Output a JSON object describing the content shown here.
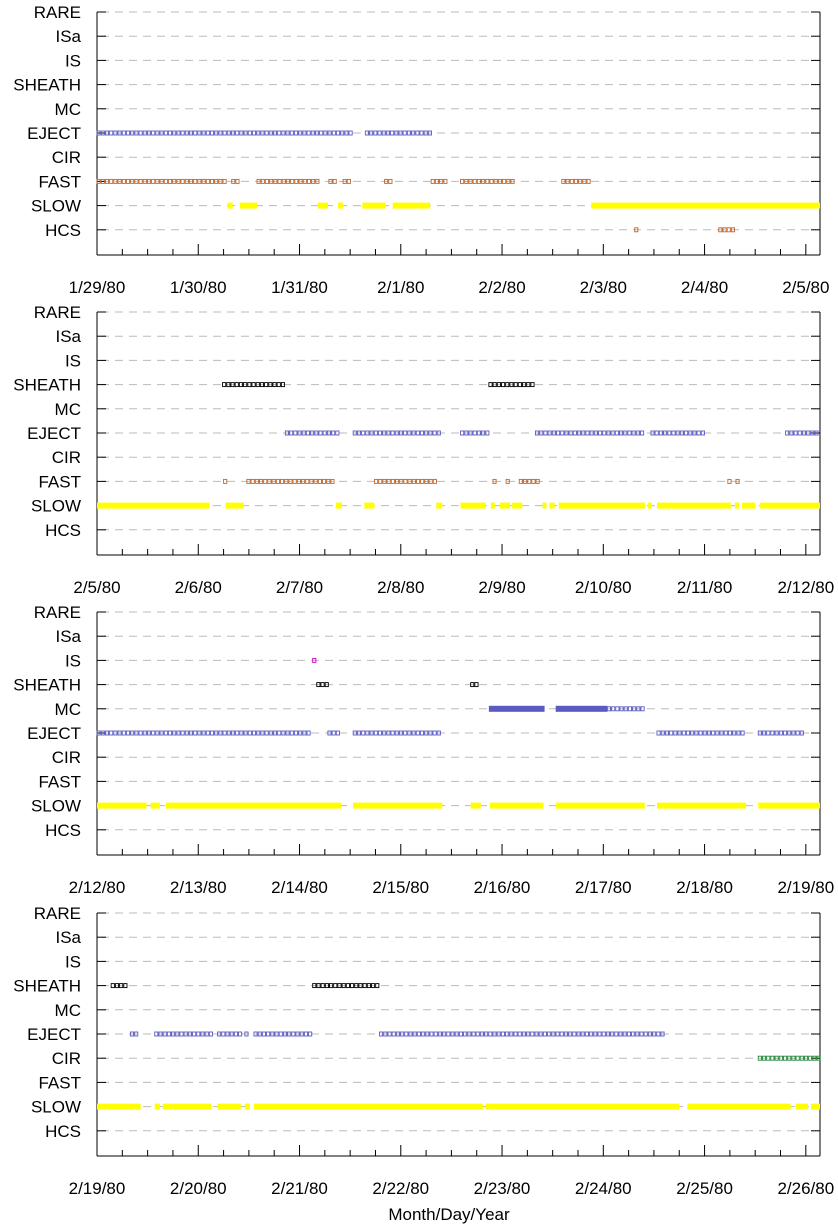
{
  "chart_data": {
    "type": "scatter",
    "title": "",
    "xlabel": "Month/Day/Year",
    "categories": [
      "RARE",
      "ISa",
      "IS",
      "SHEATH",
      "MC",
      "EJECT",
      "CIR",
      "FAST",
      "SLOW",
      "HCS"
    ],
    "colors": {
      "SLOW": "#ffff00",
      "FAST": "#c0652a",
      "EJECT": "#5a5ac0",
      "MC": "#5a5ac0",
      "SHEATH": "#000000",
      "IS": "#cc00cc",
      "CIR": "#22893a",
      "HCS": "#c0652a",
      "grid": "#bbbbbb"
    },
    "panels": [
      {
        "xstart": "1/29/80",
        "xticks": [
          "1/29/80",
          "1/30/80",
          "1/31/80",
          "2/1/80",
          "2/2/80",
          "2/3/80",
          "2/4/80",
          "2/5/80"
        ],
        "series": [
          {
            "name": "EJECT",
            "style": "sparse",
            "intervals": [
              [
                0.0,
                2.53
              ],
              [
                2.65,
                3.3
              ]
            ]
          },
          {
            "name": "FAST",
            "style": "sparse",
            "intervals": [
              [
                0.0,
                1.27
              ],
              [
                1.33,
                1.41
              ],
              [
                1.58,
                2.2
              ],
              [
                2.29,
                2.38
              ],
              [
                2.43,
                2.53
              ],
              [
                2.84,
                2.92
              ],
              [
                3.3,
                3.47
              ],
              [
                3.59,
                4.13
              ],
              [
                4.59,
                4.9
              ]
            ]
          },
          {
            "name": "SLOW",
            "style": "dense",
            "intervals": [
              [
                1.29,
                1.34
              ],
              [
                1.41,
                1.58
              ],
              [
                2.18,
                2.28
              ],
              [
                2.38,
                2.43
              ],
              [
                2.62,
                2.85
              ],
              [
                2.92,
                3.29
              ],
              [
                4.88,
                7.14
              ]
            ]
          },
          {
            "name": "HCS",
            "style": "sparse",
            "intervals": [
              [
                5.31,
                5.35
              ],
              [
                6.14,
                6.3
              ]
            ]
          }
        ]
      },
      {
        "xstart": "2/5/80",
        "xticks": [
          "2/5/80",
          "2/6/80",
          "2/7/80",
          "2/8/80",
          "2/9/80",
          "2/10/80",
          "2/11/80",
          "2/12/80"
        ],
        "series": [
          {
            "name": "SHEATH",
            "style": "sparse",
            "intervals": [
              [
                1.24,
                1.85
              ],
              [
                3.87,
                4.33
              ]
            ]
          },
          {
            "name": "EJECT",
            "style": "sparse",
            "intervals": [
              [
                1.86,
                2.4
              ],
              [
                2.53,
                3.41
              ],
              [
                3.59,
                3.89
              ],
              [
                4.33,
                5.41
              ],
              [
                5.47,
                6.0
              ],
              [
                6.8,
                7.14
              ]
            ]
          },
          {
            "name": "FAST",
            "style": "sparse",
            "intervals": [
              [
                1.25,
                1.29
              ],
              [
                1.48,
                2.36
              ],
              [
                2.74,
                3.35
              ],
              [
                3.91,
                3.96
              ],
              [
                4.04,
                4.08
              ],
              [
                4.17,
                4.38
              ],
              [
                6.23,
                6.28
              ],
              [
                6.31,
                6.35
              ]
            ]
          },
          {
            "name": "SLOW",
            "style": "dense",
            "intervals": [
              [
                0.0,
                1.11
              ],
              [
                1.27,
                1.45
              ],
              [
                2.36,
                2.42
              ],
              [
                2.64,
                2.74
              ],
              [
                3.35,
                3.41
              ],
              [
                3.59,
                3.84
              ],
              [
                3.89,
                3.93
              ],
              [
                3.98,
                4.08
              ],
              [
                4.1,
                4.2
              ],
              [
                4.4,
                4.44
              ],
              [
                4.47,
                4.52
              ],
              [
                4.56,
                5.41
              ],
              [
                5.44,
                5.48
              ],
              [
                5.53,
                6.26
              ],
              [
                6.3,
                6.34
              ],
              [
                6.37,
                6.5
              ],
              [
                6.55,
                7.14
              ]
            ]
          }
        ]
      },
      {
        "xstart": "2/12/80",
        "xticks": [
          "2/12/80",
          "2/13/80",
          "2/14/80",
          "2/15/80",
          "2/16/80",
          "2/17/80",
          "2/18/80",
          "2/19/80"
        ],
        "series": [
          {
            "name": "IS",
            "style": "sparse",
            "intervals": [
              [
                2.13,
                2.16
              ]
            ]
          },
          {
            "name": "SHEATH",
            "style": "sparse",
            "intervals": [
              [
                2.17,
                2.28
              ],
              [
                3.69,
                3.79
              ]
            ]
          },
          {
            "name": "MC",
            "style": "dense",
            "intervals": [
              [
                3.87,
                4.42
              ],
              [
                4.53,
                5.04
              ]
            ]
          },
          {
            "name": "MC",
            "style": "sparse",
            "intervals": [
              [
                5.04,
                5.41
              ]
            ]
          },
          {
            "name": "EJECT",
            "style": "sparse",
            "intervals": [
              [
                0.0,
                2.1
              ],
              [
                2.28,
                2.41
              ],
              [
                2.53,
                3.41
              ],
              [
                5.53,
                6.41
              ],
              [
                6.53,
                6.99
              ]
            ]
          },
          {
            "name": "SLOW",
            "style": "dense",
            "intervals": [
              [
                0.0,
                0.49
              ],
              [
                0.53,
                0.62
              ],
              [
                0.68,
                2.41
              ],
              [
                2.53,
                3.41
              ],
              [
                3.69,
                3.79
              ],
              [
                3.88,
                4.41
              ],
              [
                4.53,
                5.41
              ],
              [
                5.53,
                6.41
              ],
              [
                6.53,
                7.14
              ]
            ]
          }
        ]
      },
      {
        "xstart": "2/19/80",
        "xticks": [
          "2/19/80",
          "2/20/80",
          "2/21/80",
          "2/22/80",
          "2/23/80",
          "2/24/80",
          "2/25/80",
          "2/26/80"
        ],
        "series": [
          {
            "name": "SHEATH",
            "style": "sparse",
            "intervals": [
              [
                0.14,
                0.31
              ],
              [
                2.13,
                2.79
              ]
            ]
          },
          {
            "name": "EJECT",
            "style": "sparse",
            "intervals": [
              [
                0.33,
                0.43
              ],
              [
                0.57,
                1.13
              ],
              [
                1.19,
                1.42
              ],
              [
                1.46,
                1.51
              ],
              [
                1.55,
                2.13
              ],
              [
                2.79,
                5.6
              ]
            ]
          },
          {
            "name": "CIR",
            "style": "sparse",
            "intervals": [
              [
                6.53,
                7.14
              ]
            ]
          },
          {
            "name": "SLOW",
            "style": "dense",
            "intervals": [
              [
                0.0,
                0.43
              ],
              [
                0.57,
                0.62
              ],
              [
                0.65,
                1.13
              ],
              [
                1.19,
                1.42
              ],
              [
                1.46,
                1.51
              ],
              [
                1.55,
                3.81
              ],
              [
                3.84,
                5.75
              ],
              [
                5.83,
                6.85
              ],
              [
                6.9,
                7.02
              ],
              [
                7.05,
                7.14
              ]
            ]
          }
        ]
      }
    ]
  }
}
